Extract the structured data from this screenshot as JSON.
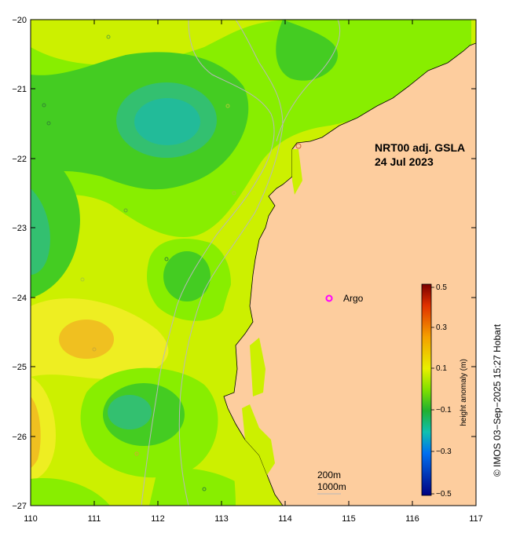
{
  "title": {
    "line1": "NRT00 adj. GSLA",
    "line2": "24 Jul 2023"
  },
  "legend": {
    "argo_marker": "o",
    "argo_label": "Argo",
    "argo_color": "#ff00ff"
  },
  "colorbar": {
    "label": "height anomaly (m)",
    "ticks": [
      "0.5",
      "0.3",
      "0.1",
      "−0.1",
      "−0.3",
      "−0.5"
    ]
  },
  "bathymetry_legend": {
    "line1": "200m",
    "line2": "1000m"
  },
  "credit": "© IMOS 03−Sep−2025 15:27 Hobart",
  "axes": {
    "x_ticks": [
      "110",
      "111",
      "112",
      "113",
      "114",
      "115",
      "116",
      "117"
    ],
    "y_ticks": [
      "−20",
      "−21",
      "−22",
      "−23",
      "−24",
      "−25",
      "−26",
      "−27"
    ]
  },
  "colors": {
    "land": "#fdcd9e",
    "yellow_green": "#ccf000",
    "lime": "#88ee00",
    "green": "#44cc22",
    "teal": "#22bb88",
    "yellow": "#eeee22",
    "orange": "#f0c020"
  }
}
